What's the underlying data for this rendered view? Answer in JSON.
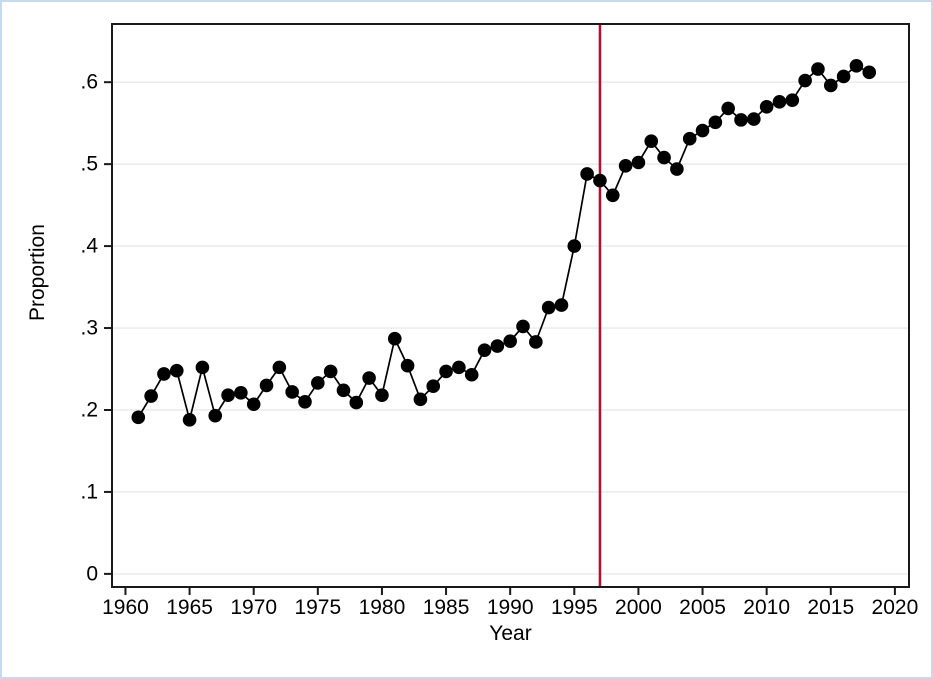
{
  "figure": {
    "background": "#ffffff",
    "border_color": "#c6d9f1"
  },
  "chart_data": {
    "type": "line",
    "title": "",
    "xlabel": "Year",
    "ylabel": "Proportion",
    "legend": "none",
    "grid": "horizontal",
    "marker": "filled-circle",
    "line_color": "#000000",
    "marker_color": "#000000",
    "gridline_color": "#e9e9e9",
    "frame_color": "#1a1a1a",
    "tick_label_color": "#000000",
    "xlim": [
      1958.95,
      2021.1
    ],
    "ylim": [
      -0.016,
      0.671
    ],
    "x_tick_values": [
      1960,
      1965,
      1970,
      1975,
      1980,
      1985,
      1990,
      1995,
      2000,
      2005,
      2010,
      2015,
      2020
    ],
    "x_tick_labels": [
      "1960",
      "1965",
      "1970",
      "1975",
      "1980",
      "1985",
      "1990",
      "1995",
      "2000",
      "2005",
      "2010",
      "2015",
      "2020"
    ],
    "y_tick_values": [
      0,
      0.1,
      0.2,
      0.3,
      0.4,
      0.5,
      0.6
    ],
    "y_tick_labels": [
      "0",
      ".1",
      ".2",
      ".3",
      ".4",
      ".5",
      ".6"
    ],
    "vline": {
      "x": 1997,
      "color": "#b60d33"
    },
    "series": [
      {
        "name": "Proportion",
        "x": [
          1961,
          1962,
          1963,
          1964,
          1965,
          1966,
          1967,
          1968,
          1969,
          1970,
          1971,
          1972,
          1973,
          1974,
          1975,
          1976,
          1977,
          1978,
          1979,
          1980,
          1981,
          1982,
          1983,
          1984,
          1985,
          1986,
          1987,
          1988,
          1989,
          1990,
          1991,
          1992,
          1993,
          1994,
          1995,
          1996,
          1997,
          1998,
          1999,
          2000,
          2001,
          2002,
          2003,
          2004,
          2005,
          2006,
          2007,
          2008,
          2009,
          2010,
          2011,
          2012,
          2013,
          2014,
          2015,
          2016,
          2017,
          2018
        ],
        "values": [
          0.191,
          0.217,
          0.244,
          0.248,
          0.188,
          0.252,
          0.193,
          0.218,
          0.221,
          0.207,
          0.23,
          0.252,
          0.222,
          0.21,
          0.233,
          0.247,
          0.224,
          0.209,
          0.239,
          0.218,
          0.287,
          0.254,
          0.213,
          0.229,
          0.247,
          0.252,
          0.243,
          0.273,
          0.278,
          0.284,
          0.302,
          0.283,
          0.325,
          0.328,
          0.4,
          0.488,
          0.48,
          0.462,
          0.498,
          0.502,
          0.528,
          0.508,
          0.494,
          0.531,
          0.541,
          0.551,
          0.568,
          0.554,
          0.555,
          0.57,
          0.576,
          0.578,
          0.602,
          0.616,
          0.596,
          0.607,
          0.62,
          0.612
        ]
      }
    ]
  }
}
